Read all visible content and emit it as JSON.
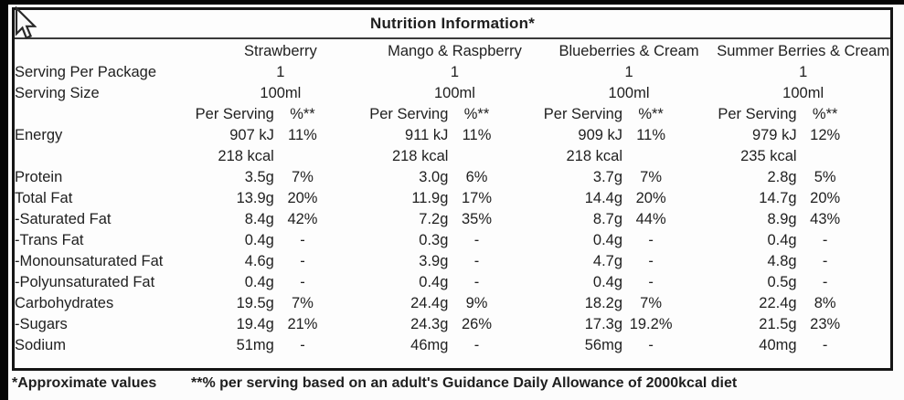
{
  "screen": {
    "cursor": "arrow"
  },
  "table": {
    "title": "Nutrition Information*",
    "columns": [
      "Strawberry",
      "Mango & Raspberry",
      "Blueberries & Cream",
      "Summer Berries & Cream"
    ],
    "serving_rows": [
      {
        "label": "Serving Per Package",
        "bold": true,
        "values": [
          "1",
          "1",
          "1",
          "1"
        ]
      },
      {
        "label": "Serving Size",
        "bold": true,
        "values": [
          "100ml",
          "100ml",
          "100ml",
          "100ml"
        ]
      }
    ],
    "subheader": {
      "value_label": "Per Serving",
      "percent_label": "%**"
    },
    "nutrient_rows": [
      {
        "label": "Energy",
        "bold": true,
        "cells": [
          {
            "v": "907 kJ",
            "p": "11%"
          },
          {
            "v": "911 kJ",
            "p": "11%"
          },
          {
            "v": "909 kJ",
            "p": "11%"
          },
          {
            "v": "979 kJ",
            "p": "12%"
          }
        ]
      },
      {
        "label": "",
        "bold": false,
        "cells": [
          {
            "v": "218 kcal",
            "p": ""
          },
          {
            "v": "218 kcal",
            "p": ""
          },
          {
            "v": "218 kcal",
            "p": ""
          },
          {
            "v": "235 kcal",
            "p": ""
          }
        ]
      },
      {
        "label": "Protein",
        "bold": true,
        "cells": [
          {
            "v": "3.5g",
            "p": "7%"
          },
          {
            "v": "3.0g",
            "p": "6%"
          },
          {
            "v": "3.7g",
            "p": "7%"
          },
          {
            "v": "2.8g",
            "p": "5%"
          }
        ]
      },
      {
        "label": "Total Fat",
        "bold": true,
        "cells": [
          {
            "v": "13.9g",
            "p": "20%"
          },
          {
            "v": "11.9g",
            "p": "17%"
          },
          {
            "v": "14.4g",
            "p": "20%"
          },
          {
            "v": "14.7g",
            "p": "20%"
          }
        ]
      },
      {
        "label": "-Saturated Fat",
        "bold": false,
        "cells": [
          {
            "v": "8.4g",
            "p": "42%"
          },
          {
            "v": "7.2g",
            "p": "35%"
          },
          {
            "v": "8.7g",
            "p": "44%"
          },
          {
            "v": "8.9g",
            "p": "43%"
          }
        ]
      },
      {
        "label": "-Trans Fat",
        "bold": false,
        "cells": [
          {
            "v": "0.4g",
            "p": "-"
          },
          {
            "v": "0.3g",
            "p": "-"
          },
          {
            "v": "0.4g",
            "p": "-"
          },
          {
            "v": "0.4g",
            "p": "-"
          }
        ]
      },
      {
        "label": "-Monounsaturated Fat",
        "bold": false,
        "cells": [
          {
            "v": "4.6g",
            "p": "-"
          },
          {
            "v": "3.9g",
            "p": "-"
          },
          {
            "v": "4.7g",
            "p": "-"
          },
          {
            "v": "4.8g",
            "p": "-"
          }
        ]
      },
      {
        "label": "-Polyunsaturated Fat",
        "bold": false,
        "cells": [
          {
            "v": "0.4g",
            "p": "-"
          },
          {
            "v": "0.4g",
            "p": "-"
          },
          {
            "v": "0.4g",
            "p": "-"
          },
          {
            "v": "0.5g",
            "p": "-"
          }
        ]
      },
      {
        "label": "Carbohydrates",
        "bold": true,
        "cells": [
          {
            "v": "19.5g",
            "p": "7%"
          },
          {
            "v": "24.4g",
            "p": "9%"
          },
          {
            "v": "18.2g",
            "p": "7%"
          },
          {
            "v": "22.4g",
            "p": "8%"
          }
        ]
      },
      {
        "label": "-Sugars",
        "bold": false,
        "cells": [
          {
            "v": "19.4g",
            "p": "21%"
          },
          {
            "v": "24.3g",
            "p": "26%"
          },
          {
            "v": "17.3g",
            "p": "19.2%"
          },
          {
            "v": "21.5g",
            "p": "23%"
          }
        ]
      },
      {
        "label": "Sodium",
        "bold": true,
        "cells": [
          {
            "v": "51mg",
            "p": "-"
          },
          {
            "v": "46mg",
            "p": "-"
          },
          {
            "v": "56mg",
            "p": "-"
          },
          {
            "v": "40mg",
            "p": "-"
          }
        ]
      }
    ],
    "footnotes": {
      "left": "*Approximate values",
      "right": "**% per serving based on an adult's Guidance Daily Allowance of 2000kcal diet"
    }
  }
}
